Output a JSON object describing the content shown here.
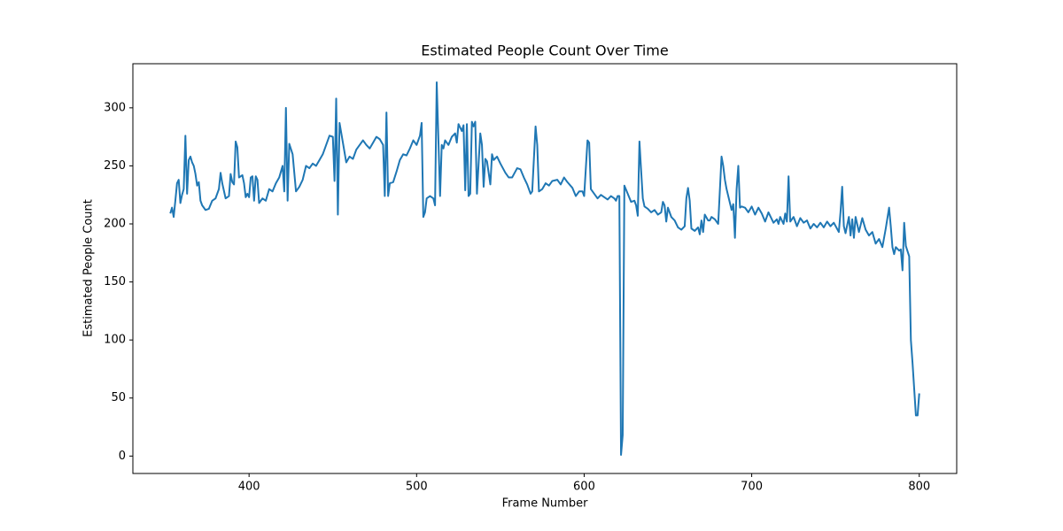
{
  "chart_data": {
    "type": "line",
    "title": "Estimated People Count Over Time",
    "x_label": "Frame Number",
    "y_label": "Estimated People Count",
    "color": "#1f77b4",
    "xlim": [
      330.65,
      822.35
    ],
    "ylim": [
      -15,
      338
    ],
    "xticks": [
      400,
      500,
      600,
      700,
      800
    ],
    "yticks": [
      0,
      50,
      100,
      150,
      200,
      250,
      300
    ],
    "x": [
      353,
      354,
      355,
      356,
      357,
      358,
      359,
      360,
      361,
      362,
      363,
      364,
      365,
      366,
      367,
      368,
      369,
      370,
      371,
      372,
      374,
      376,
      378,
      380,
      382,
      383,
      384,
      386,
      388,
      389,
      390,
      391,
      392,
      393,
      394,
      396,
      397,
      398,
      399,
      400,
      401,
      402,
      403,
      404,
      405,
      406,
      408,
      410,
      412,
      414,
      416,
      418,
      420,
      421,
      422,
      423,
      424,
      426,
      428,
      430,
      432,
      434,
      436,
      438,
      440,
      442,
      444,
      446,
      448,
      450,
      451,
      452,
      453,
      454,
      456,
      458,
      460,
      462,
      464,
      466,
      468,
      470,
      472,
      474,
      476,
      478,
      480,
      481,
      482,
      483,
      484,
      486,
      488,
      490,
      492,
      494,
      496,
      498,
      500,
      502,
      503,
      504,
      505,
      506,
      508,
      510,
      511,
      512,
      514,
      515,
      516,
      517,
      519,
      521,
      523,
      524,
      525,
      527,
      528,
      529,
      530,
      531,
      532,
      533,
      534,
      535,
      536,
      538,
      539,
      540,
      541,
      542,
      544,
      545,
      546,
      548,
      550,
      553,
      555,
      557,
      560,
      562,
      564,
      566,
      568,
      569,
      571,
      572,
      573,
      575,
      577,
      579,
      581,
      584,
      586,
      588,
      590,
      593,
      595,
      597,
      599,
      600,
      602,
      603,
      604,
      606,
      608,
      610,
      612,
      614,
      616,
      618,
      619,
      620,
      621,
      622,
      623,
      624,
      626,
      628,
      630,
      631,
      632,
      633,
      634,
      635,
      636,
      638,
      640,
      642,
      644,
      646,
      647,
      648,
      649,
      650,
      652,
      654,
      656,
      658,
      660,
      661,
      662,
      663,
      664,
      666,
      668,
      669,
      670,
      671,
      672,
      674,
      675,
      676,
      678,
      680,
      682,
      683,
      684,
      685,
      686,
      688,
      689,
      690,
      691,
      692,
      693,
      694,
      696,
      698,
      700,
      702,
      704,
      706,
      708,
      710,
      713,
      715,
      716,
      717,
      719,
      720,
      721,
      722,
      723,
      725,
      727,
      729,
      731,
      733,
      735,
      737,
      739,
      741,
      743,
      745,
      747,
      749,
      752,
      753,
      754,
      755,
      756,
      758,
      759,
      760,
      761,
      762,
      764,
      766,
      768,
      770,
      772,
      774,
      776,
      778,
      780,
      782,
      783,
      784,
      785,
      786,
      788,
      789,
      790,
      791,
      792,
      794,
      795,
      796,
      798,
      799,
      800
    ],
    "values": [
      209,
      214,
      206,
      220,
      235,
      238,
      218,
      225,
      230,
      276,
      226,
      255,
      258,
      253,
      250,
      243,
      233,
      236,
      220,
      216,
      212,
      213,
      220,
      222,
      230,
      244,
      235,
      222,
      224,
      243,
      236,
      234,
      271,
      266,
      240,
      242,
      235,
      223,
      226,
      223,
      240,
      241,
      220,
      241,
      238,
      218,
      222,
      220,
      230,
      228,
      235,
      240,
      250,
      228,
      300,
      220,
      269,
      260,
      228,
      232,
      238,
      250,
      248,
      252,
      250,
      255,
      260,
      268,
      276,
      275,
      237,
      308,
      208,
      287,
      270,
      253,
      258,
      256,
      264,
      268,
      272,
      268,
      265,
      270,
      275,
      273,
      268,
      224,
      296,
      224,
      235,
      236,
      245,
      255,
      260,
      259,
      265,
      272,
      268,
      276,
      287,
      206,
      210,
      222,
      224,
      222,
      216,
      322,
      224,
      268,
      265,
      272,
      268,
      275,
      278,
      270,
      286,
      280,
      285,
      229,
      286,
      224,
      226,
      288,
      284,
      288,
      226,
      278,
      268,
      232,
      256,
      254,
      234,
      260,
      255,
      258,
      252,
      244,
      240,
      240,
      248,
      247,
      240,
      234,
      226,
      228,
      284,
      268,
      228,
      230,
      235,
      233,
      237,
      238,
      234,
      240,
      236,
      231,
      224,
      228,
      228,
      224,
      272,
      270,
      230,
      226,
      222,
      225,
      223,
      221,
      224,
      222,
      220,
      224,
      224,
      1,
      18,
      233,
      226,
      219,
      220,
      216,
      207,
      271,
      246,
      222,
      215,
      213,
      210,
      212,
      208,
      210,
      219,
      216,
      202,
      214,
      206,
      203,
      197,
      195,
      198,
      222,
      231,
      220,
      196,
      194,
      197,
      191,
      203,
      193,
      208,
      203,
      203,
      206,
      204,
      200,
      258,
      250,
      238,
      230,
      224,
      212,
      217,
      188,
      230,
      250,
      214,
      215,
      214,
      210,
      215,
      208,
      214,
      209,
      202,
      210,
      201,
      204,
      200,
      206,
      200,
      209,
      202,
      241,
      202,
      206,
      198,
      205,
      201,
      203,
      196,
      200,
      197,
      201,
      197,
      202,
      198,
      201,
      193,
      210,
      232,
      198,
      192,
      206,
      190,
      204,
      188,
      206,
      193,
      205,
      195,
      190,
      193,
      183,
      187,
      180,
      196,
      214,
      198,
      180,
      174,
      180,
      177,
      178,
      160,
      201,
      181,
      172,
      100,
      80,
      35,
      35,
      54
    ]
  }
}
